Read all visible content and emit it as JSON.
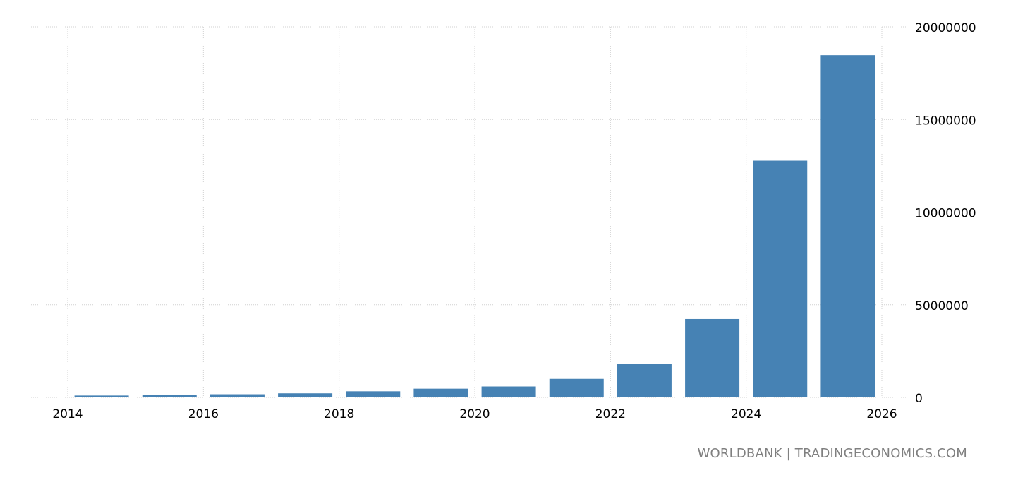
{
  "chart_data": {
    "type": "bar",
    "x": [
      2014.5,
      2015.5,
      2016.5,
      2017.5,
      2018.5,
      2019.5,
      2020.5,
      2021.5,
      2022.5,
      2023.5,
      2024.5,
      2025.5
    ],
    "values": [
      100000,
      130000,
      170000,
      220000,
      330000,
      470000,
      590000,
      1000000,
      1820000,
      4230000,
      12780000,
      18470000
    ],
    "xticks": [
      2014,
      2016,
      2018,
      2020,
      2022,
      2024,
      2026
    ],
    "xtick_labels": [
      "2014",
      "2016",
      "2018",
      "2020",
      "2022",
      "2024",
      "2026"
    ],
    "yticks": [
      0,
      5000000,
      10000000,
      15000000,
      20000000
    ],
    "ytick_labels": [
      "0",
      "5000000",
      "10000000",
      "15000000",
      "20000000"
    ],
    "xlim": [
      2014,
      2026
    ],
    "ylim": [
      0,
      20000000
    ],
    "title": "",
    "xlabel": "",
    "ylabel": "",
    "grid": true,
    "bar_color": "#4682b4",
    "grid_color": "#d0d0d0"
  },
  "source_label": "WORLDBANK | TRADINGECONOMICS.COM"
}
